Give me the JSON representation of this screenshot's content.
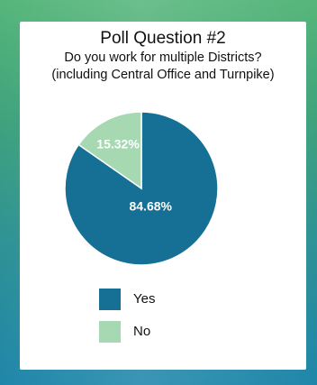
{
  "chart_data": {
    "type": "pie",
    "title": "Poll Question #2",
    "subtitle_lines": [
      "Do you work for multiple Districts?",
      "(including Central Office and Turnpike)"
    ],
    "slices": [
      {
        "label": "Yes",
        "value": 84.68,
        "display": "84.68%",
        "color": "#166f94"
      },
      {
        "label": "No",
        "value": 15.32,
        "display": "15.32%",
        "color": "#a6d9b2"
      }
    ],
    "legend": "bottom"
  }
}
